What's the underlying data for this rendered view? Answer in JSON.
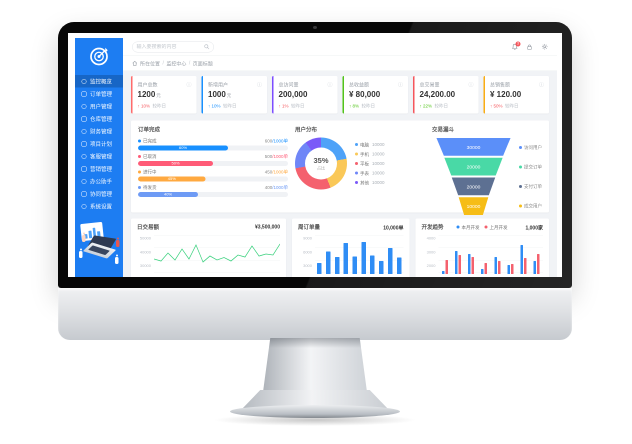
{
  "sidebar": {
    "items": [
      {
        "label": "监控概览",
        "active": true
      },
      {
        "label": "订单管理",
        "active": false
      },
      {
        "label": "用户管理",
        "active": false
      },
      {
        "label": "仓库管理",
        "active": false
      },
      {
        "label": "财务管理",
        "active": false
      },
      {
        "label": "项目计划",
        "active": false
      },
      {
        "label": "客服管理",
        "active": false
      },
      {
        "label": "营销管理",
        "active": false
      },
      {
        "label": "办公助手",
        "active": false
      },
      {
        "label": "协同管理",
        "active": false
      },
      {
        "label": "系统设置",
        "active": false
      }
    ]
  },
  "header": {
    "search_placeholder": "输入要搜索的内容",
    "notification_count": "3"
  },
  "breadcrumb": {
    "home": "所在位置",
    "level1": "监控中心",
    "level2": "页面标题"
  },
  "cards": [
    {
      "title": "用户总数",
      "value": "1200",
      "unit": "元",
      "trend": "↑ 10%",
      "trend_color": "#f5565c",
      "note": "较昨日",
      "accent": "#ff6b6b",
      "info_icon": "ⓘ"
    },
    {
      "title": "新增用户",
      "value": "1000",
      "unit": "元",
      "trend": "↑ 10%",
      "trend_color": "#1890ff",
      "note": "较昨日",
      "accent": "#1890ff",
      "info_icon": "ⓘ"
    },
    {
      "title": "总访问量",
      "value": "200,000",
      "unit": "",
      "trend": "↑ 1%",
      "trend_color": "#f5565c",
      "note": "较昨日",
      "accent": "#7c4dff",
      "info_icon": "ⓘ"
    },
    {
      "title": "总收益额",
      "value": "¥ 80,000",
      "unit": "",
      "trend": "↑ 8%",
      "trend_color": "#52c41a",
      "note": "较昨日",
      "accent": "#52c41a",
      "info_icon": "ⓘ"
    },
    {
      "title": "总交易量",
      "value": "24,200.00",
      "unit": "",
      "trend": "↑ 22%",
      "trend_color": "#52c41a",
      "note": "较昨日",
      "accent": "#f5565c",
      "info_icon": "ⓘ"
    },
    {
      "title": "总销售额",
      "value": "¥ 120.00",
      "unit": "",
      "trend": "↑ 50%",
      "trend_color": "#f5565c",
      "note": "较昨日",
      "accent": "#faad14",
      "info_icon": "ⓘ"
    }
  ],
  "chart_data": [
    {
      "type": "bar",
      "name": "progress",
      "title": "订单完成",
      "rows": [
        {
          "label": "已完成",
          "value": "600/1000单",
          "percent": 60,
          "color": "#1890ff"
        },
        {
          "label": "已取消",
          "value": "500/1000单",
          "percent": 50,
          "color": "#ff5b77"
        },
        {
          "label": "进行中",
          "value": "450/1000单",
          "percent": 45,
          "color": "#ffa940"
        },
        {
          "label": "待发货",
          "value": "400/1000单",
          "percent": 40,
          "color": "#6e9bf5"
        }
      ]
    },
    {
      "type": "pie",
      "name": "donut",
      "title": "用户分布",
      "center_value": "35%",
      "center_label": "占比",
      "segments": [
        {
          "label": "电脑",
          "value": "10000",
          "percent": 22,
          "color": "#4ea2f8"
        },
        {
          "label": "手机",
          "value": "10000",
          "percent": 22,
          "color": "#fac858"
        },
        {
          "label": "平板",
          "value": "10000",
          "percent": 28,
          "color": "#f4616e"
        },
        {
          "label": "手表",
          "value": "10000",
          "percent": 18,
          "color": "#6f86f7"
        },
        {
          "label": "其他",
          "value": "10000",
          "percent": 10,
          "color": "#7a5af8"
        }
      ]
    },
    {
      "type": "funnel",
      "name": "funnel",
      "title": "交易漏斗",
      "layers": [
        {
          "label": "访问用户",
          "value": "30000",
          "color": "#5b8ff9"
        },
        {
          "label": "提交订单",
          "value": "20000",
          "color": "#49d9a6"
        },
        {
          "label": "支付订单",
          "value": "20000",
          "color": "#5d7092"
        },
        {
          "label": "成交用户",
          "value": "10000",
          "color": "#f6bd16"
        }
      ]
    },
    {
      "type": "line",
      "name": "daily",
      "title": "日交易额",
      "total": "¥3,500,000",
      "color": "#3bd17e",
      "yticks": [
        "50000",
        "40000",
        "30000"
      ],
      "points": [
        30,
        26,
        42,
        28,
        50,
        30,
        58,
        24,
        36,
        28,
        33,
        26,
        38,
        34,
        56,
        36,
        40,
        38,
        60
      ]
    },
    {
      "type": "bar",
      "name": "weekly",
      "title": "周订单量",
      "total": "10,000单",
      "color": "#2f8df5",
      "yticks": [
        "9000",
        "6000",
        "3000"
      ],
      "values": [
        22,
        45,
        34,
        62,
        35,
        64,
        37,
        26,
        52,
        33
      ]
    },
    {
      "type": "bar",
      "name": "trend",
      "title": "开发趋势",
      "total": "1,000家",
      "yticks": [
        "4000",
        "3000",
        "2000"
      ],
      "series": [
        {
          "name": "本月开发",
          "color": "#2f8df5"
        },
        {
          "name": "上月开发",
          "color": "#f4616e"
        }
      ],
      "pairs": [
        [
          6,
          28
        ],
        [
          46,
          38
        ],
        [
          40,
          34
        ],
        [
          10,
          22
        ],
        [
          34,
          26
        ],
        [
          18,
          20
        ],
        [
          58,
          32
        ],
        [
          26,
          40
        ]
      ]
    }
  ]
}
